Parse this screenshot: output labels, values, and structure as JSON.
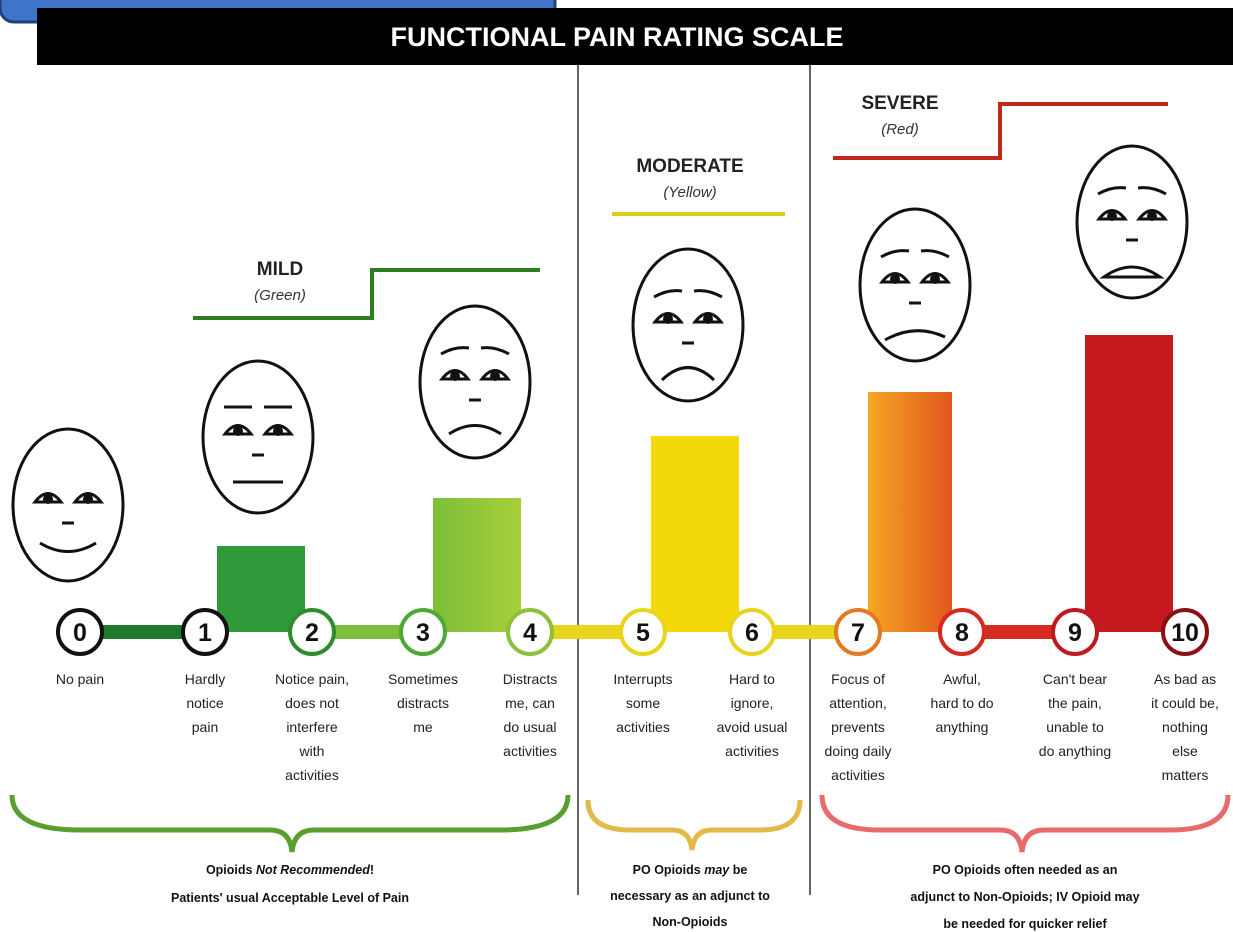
{
  "title": "FUNCTIONAL PAIN RATING SCALE",
  "categories": [
    {
      "name": "MILD",
      "color_name": "(Green)"
    },
    {
      "name": "MODERATE",
      "color_name": "(Yellow)"
    },
    {
      "name": "SEVERE",
      "color_name": "(Red)"
    }
  ],
  "levels": [
    {
      "number": 0,
      "description": [
        "No pain"
      ]
    },
    {
      "number": 1,
      "description": [
        "Hardly",
        "notice",
        "pain"
      ]
    },
    {
      "number": 2,
      "description": [
        "Notice pain,",
        "does not",
        "interfere",
        "with",
        "activities"
      ]
    },
    {
      "number": 3,
      "description": [
        "Sometimes",
        "distracts",
        "me"
      ]
    },
    {
      "number": 4,
      "description": [
        "Distracts",
        "me, can",
        "do usual",
        "activities"
      ]
    },
    {
      "number": 5,
      "description": [
        "Interrupts",
        "some",
        "activities"
      ]
    },
    {
      "number": 6,
      "description": [
        "Hard to",
        "ignore,",
        "avoid usual",
        "activities"
      ]
    },
    {
      "number": 7,
      "description": [
        "Focus of",
        "attention,",
        "prevents",
        "doing daily",
        "activities"
      ]
    },
    {
      "number": 8,
      "description": [
        "Awful,",
        "hard to do",
        "anything"
      ]
    },
    {
      "number": 9,
      "description": [
        "Can't bear",
        "the pain,",
        "unable to",
        "do anything"
      ]
    },
    {
      "number": 10,
      "description": [
        "As bad as",
        "it could be,",
        "nothing",
        "else",
        "matters"
      ]
    }
  ],
  "notes": [
    {
      "lines": [
        [
          {
            "text": "Opioids "
          },
          {
            "text": "Not Recommended",
            "italic": true
          },
          {
            "text": "!"
          }
        ],
        [
          {
            "text": "Patients' usual Acceptable Level of Pain"
          }
        ]
      ]
    },
    {
      "lines": [
        [
          {
            "text": "PO Opioids "
          },
          {
            "text": "may",
            "italic": true
          },
          {
            "text": " be"
          }
        ],
        [
          {
            "text": "necessary as an adjunct to"
          }
        ],
        [
          {
            "text": "Non-Opioids"
          }
        ]
      ]
    },
    {
      "lines": [
        [
          {
            "text": "PO Opioids often needed as an"
          }
        ],
        [
          {
            "text": "adjunct to Non-Opioids; IV Opioid may"
          }
        ],
        [
          {
            "text": "be needed for quicker relief"
          }
        ]
      ]
    }
  ]
}
